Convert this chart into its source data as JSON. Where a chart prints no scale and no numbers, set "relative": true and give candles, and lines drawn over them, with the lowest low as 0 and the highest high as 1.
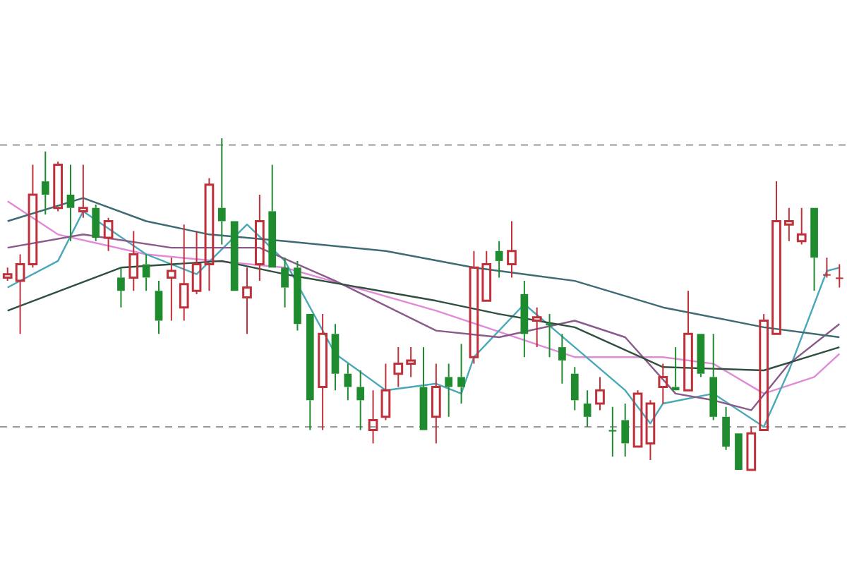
{
  "chart_data": {
    "type": "candlestick",
    "relative": true,
    "categories": [
      null,
      null,
      null,
      null,
      null,
      null,
      null,
      null,
      null,
      null,
      null,
      null,
      null,
      null,
      null,
      null,
      null,
      null,
      null,
      null,
      null,
      null,
      null,
      null,
      null,
      null,
      null,
      null,
      null,
      null,
      null,
      null,
      null,
      null,
      null,
      null,
      null,
      null,
      null,
      null,
      null,
      null,
      null,
      null,
      null,
      null,
      null,
      null,
      null,
      null,
      null,
      null,
      null,
      null,
      null,
      null,
      null,
      null,
      null,
      null,
      null,
      null,
      null,
      null,
      null,
      null,
      null
    ],
    "ohlc": [
      [
        0.58,
        0.61,
        0.57,
        0.59
      ],
      [
        0.57,
        0.65,
        0.41,
        0.62
      ],
      [
        0.62,
        0.92,
        0.61,
        0.83
      ],
      [
        0.87,
        0.96,
        0.77,
        0.83
      ],
      [
        0.79,
        0.93,
        0.78,
        0.92
      ],
      [
        0.83,
        0.92,
        0.69,
        0.79
      ],
      [
        0.78,
        0.92,
        0.76,
        0.79
      ],
      [
        0.79,
        0.8,
        0.69,
        0.7
      ],
      [
        0.7,
        0.76,
        0.66,
        0.75
      ],
      [
        0.58,
        0.61,
        0.49,
        0.54
      ],
      [
        0.58,
        0.72,
        0.54,
        0.65
      ],
      [
        0.62,
        0.65,
        0.54,
        0.58
      ],
      [
        0.54,
        0.57,
        0.41,
        0.45
      ],
      [
        0.58,
        0.64,
        0.45,
        0.6
      ],
      [
        0.49,
        0.74,
        0.45,
        0.56
      ],
      [
        0.54,
        0.72,
        0.53,
        0.62
      ],
      [
        0.62,
        0.88,
        0.54,
        0.86
      ],
      [
        0.79,
        1,
        0.68,
        0.75
      ],
      [
        0.75,
        0.75,
        0.54,
        0.54
      ],
      [
        0.52,
        0.61,
        0.41,
        0.55
      ],
      [
        0.62,
        0.83,
        0.57,
        0.75
      ],
      [
        0.78,
        0.92,
        0.61,
        0.61
      ],
      [
        0.61,
        0.64,
        0.49,
        0.55
      ],
      [
        0.61,
        0.63,
        0.42,
        0.44
      ],
      [
        0.47,
        0.47,
        0.12,
        0.21
      ],
      [
        0.25,
        0.47,
        0.12,
        0.41
      ],
      [
        0.41,
        0.44,
        0.24,
        0.29
      ],
      [
        0.29,
        0.32,
        0.21,
        0.25
      ],
      [
        0.25,
        0.3,
        0.12,
        0.21
      ],
      [
        0.12,
        0.24,
        0.08,
        0.15
      ],
      [
        0.16,
        0.32,
        0.15,
        0.24
      ],
      [
        0.29,
        0.37,
        0.25,
        0.32
      ],
      [
        0.32,
        0.37,
        0.28,
        0.33
      ],
      [
        0.25,
        0.37,
        0.12,
        0.12
      ],
      [
        0.16,
        0.32,
        0.08,
        0.25
      ],
      [
        0.28,
        0.32,
        0.16,
        0.25
      ],
      [
        0.28,
        0.38,
        0.2,
        0.25
      ],
      [
        0.34,
        0.66,
        0.32,
        0.61
      ],
      [
        0.51,
        0.66,
        0.51,
        0.62
      ],
      [
        0.66,
        0.69,
        0.58,
        0.63
      ],
      [
        0.62,
        0.75,
        0.58,
        0.66
      ],
      [
        0.53,
        0.57,
        0.34,
        0.41
      ],
      [
        0.45,
        0.49,
        0.37,
        0.46
      ],
      [
        0.44,
        0.47,
        0.34,
        0.44
      ],
      [
        0.37,
        0.41,
        0.26,
        0.33
      ],
      [
        0.29,
        0.31,
        0.18,
        0.21
      ],
      [
        0.2,
        0.24,
        0.13,
        0.16
      ],
      [
        0.2,
        0.28,
        0.18,
        0.24
      ],
      [
        0.12,
        0.19,
        0.04,
        0.12
      ],
      [
        0.15,
        0.2,
        0.04,
        0.08
      ],
      [
        0.07,
        0.24,
        0.07,
        0.23
      ],
      [
        0.08,
        0.21,
        0.03,
        0.2
      ],
      [
        0.25,
        0.32,
        0.2,
        0.28
      ],
      [
        0.25,
        0.37,
        0.24,
        0.24
      ],
      [
        0.24,
        0.54,
        0.24,
        0.41
      ],
      [
        0.41,
        0.41,
        0.28,
        0.29
      ],
      [
        0.28,
        0.41,
        0.15,
        0.16
      ],
      [
        0.16,
        0.19,
        0.06,
        0.07
      ],
      [
        0.11,
        0.11,
        0,
        0
      ],
      [
        0,
        0.13,
        0,
        0.11
      ],
      [
        0.12,
        0.47,
        0.12,
        0.45
      ],
      [
        0.41,
        0.87,
        0.41,
        0.75
      ],
      [
        0.74,
        0.79,
        0.69,
        0.75
      ],
      [
        0.69,
        0.79,
        0.68,
        0.71
      ],
      [
        0.79,
        0.79,
        0.54,
        0.64
      ],
      [
        0.59,
        0.64,
        0.58,
        0.59
      ],
      [
        0.58,
        0.62,
        0.55,
        0.58
      ]
    ],
    "colors": [
      "#c0303a",
      "#c0303a",
      "#c0303a",
      "#1e8c2e",
      "#c0303a",
      "#1e8c2e",
      "#c0303a",
      "#1e8c2e",
      "#c0303a",
      "#1e8c2e",
      "#c0303a",
      "#1e8c2e",
      "#1e8c2e",
      "#c0303a",
      "#c0303a",
      "#c0303a",
      "#c0303a",
      "#1e8c2e",
      "#1e8c2e",
      "#c0303a",
      "#c0303a",
      "#1e8c2e",
      "#1e8c2e",
      "#1e8c2e",
      "#1e8c2e",
      "#c0303a",
      "#1e8c2e",
      "#1e8c2e",
      "#1e8c2e",
      "#c0303a",
      "#c0303a",
      "#c0303a",
      "#c0303a",
      "#1e8c2e",
      "#c0303a",
      "#1e8c2e",
      "#1e8c2e",
      "#c0303a",
      "#c0303a",
      "#1e8c2e",
      "#c0303a",
      "#1e8c2e",
      "#c0303a",
      "#1e8c2e",
      "#1e8c2e",
      "#1e8c2e",
      "#1e8c2e",
      "#c0303a",
      "#1e8c2e",
      "#1e8c2e",
      "#c0303a",
      "#c0303a",
      "#c0303a",
      "#1e8c2e",
      "#c0303a",
      "#1e8c2e",
      "#1e8c2e",
      "#1e8c2e",
      "#1e8c2e",
      "#c0303a",
      "#c0303a",
      "#c0303a",
      "#c0303a",
      "#c0303a",
      "#1e8c2e",
      "#c0303a",
      "#c0303a"
    ],
    "series": [
      {
        "type": "line",
        "color": "#3d6b73",
        "values": [
          0.75,
          null,
          null,
          null,
          null,
          null,
          0.82,
          null,
          null,
          null,
          null,
          0.75,
          null,
          null,
          null,
          null,
          0.71,
          null,
          null,
          null,
          null,
          null,
          0.69,
          null,
          null,
          null,
          null,
          null,
          null,
          null,
          0.66,
          null,
          null,
          null,
          null,
          null,
          null,
          0.61,
          null,
          null,
          null,
          null,
          null,
          null,
          null,
          0.57,
          null,
          null,
          null,
          null,
          null,
          null,
          0.49,
          null,
          null,
          null,
          null,
          null,
          null,
          null,
          0.43,
          null,
          null,
          null,
          null,
          null,
          0.4
        ]
      },
      {
        "type": "line",
        "color": "#2f4f3f",
        "values": [
          0.48,
          null,
          null,
          null,
          null,
          null,
          null,
          null,
          null,
          0.61,
          null,
          null,
          null,
          null,
          null,
          null,
          null,
          0.63,
          null,
          null,
          null,
          null,
          0.59,
          null,
          null,
          null,
          null,
          null,
          0.55,
          null,
          null,
          null,
          null,
          null,
          0.51,
          null,
          null,
          null,
          null,
          0.47,
          null,
          null,
          null,
          null,
          null,
          0.43,
          null,
          null,
          null,
          null,
          null,
          null,
          0.31,
          null,
          null,
          null,
          null,
          null,
          null,
          null,
          0.3,
          null,
          null,
          null,
          null,
          null,
          0.37
        ]
      },
      {
        "type": "line",
        "color": "#8a5a8c",
        "values": [
          0.67,
          null,
          null,
          null,
          null,
          null,
          0.71,
          null,
          null,
          null,
          null,
          null,
          null,
          0.67,
          null,
          null,
          null,
          null,
          null,
          null,
          0.67,
          null,
          null,
          null,
          null,
          null,
          0.57,
          null,
          null,
          null,
          null,
          null,
          null,
          null,
          0.42,
          null,
          null,
          null,
          null,
          0.4,
          null,
          null,
          null,
          null,
          null,
          0.45,
          null,
          null,
          null,
          0.4,
          null,
          null,
          null,
          0.23,
          null,
          null,
          0.21,
          null,
          null,
          0.18,
          null,
          null,
          0.32,
          null,
          null,
          null,
          0.44
        ]
      },
      {
        "type": "line",
        "color": "#4aa8b8",
        "values": [
          0.55,
          null,
          null,
          null,
          0.63,
          null,
          0.78,
          null,
          null,
          null,
          null,
          0.65,
          null,
          null,
          null,
          0.59,
          null,
          null,
          null,
          0.74,
          null,
          null,
          0.63,
          null,
          null,
          null,
          0.35,
          null,
          null,
          null,
          0.24,
          null,
          null,
          null,
          0.26,
          null,
          0.23,
          0.34,
          null,
          null,
          null,
          0.5,
          null,
          null,
          null,
          0.37,
          null,
          null,
          null,
          0.24,
          null,
          0.14,
          0.2,
          null,
          null,
          null,
          0.23,
          null,
          null,
          null,
          0.13,
          null,
          0.3,
          null,
          null,
          0.6,
          0.61
        ]
      },
      {
        "type": "line",
        "color": "#e08ad8",
        "values": [
          0.81,
          null,
          null,
          null,
          0.71,
          null,
          null,
          null,
          null,
          null,
          null,
          0.65,
          null,
          null,
          null,
          null,
          null,
          null,
          null,
          null,
          null,
          null,
          0.61,
          null,
          null,
          null,
          null,
          null,
          null,
          null,
          null,
          null,
          null,
          null,
          0.48,
          null,
          null,
          null,
          null,
          null,
          null,
          null,
          null,
          null,
          null,
          0.34,
          null,
          null,
          null,
          null,
          null,
          null,
          0.34,
          null,
          null,
          null,
          0.32,
          null,
          null,
          null,
          0.23,
          null,
          null,
          null,
          0.28,
          null,
          0.35
        ]
      }
    ],
    "ref_lines": [
      {
        "axis": "y",
        "value": 0.98,
        "color": "#999999",
        "line_style": "dashed"
      },
      {
        "axis": "y",
        "value": 0.13,
        "color": "#999999",
        "line_style": "dashed"
      }
    ]
  }
}
